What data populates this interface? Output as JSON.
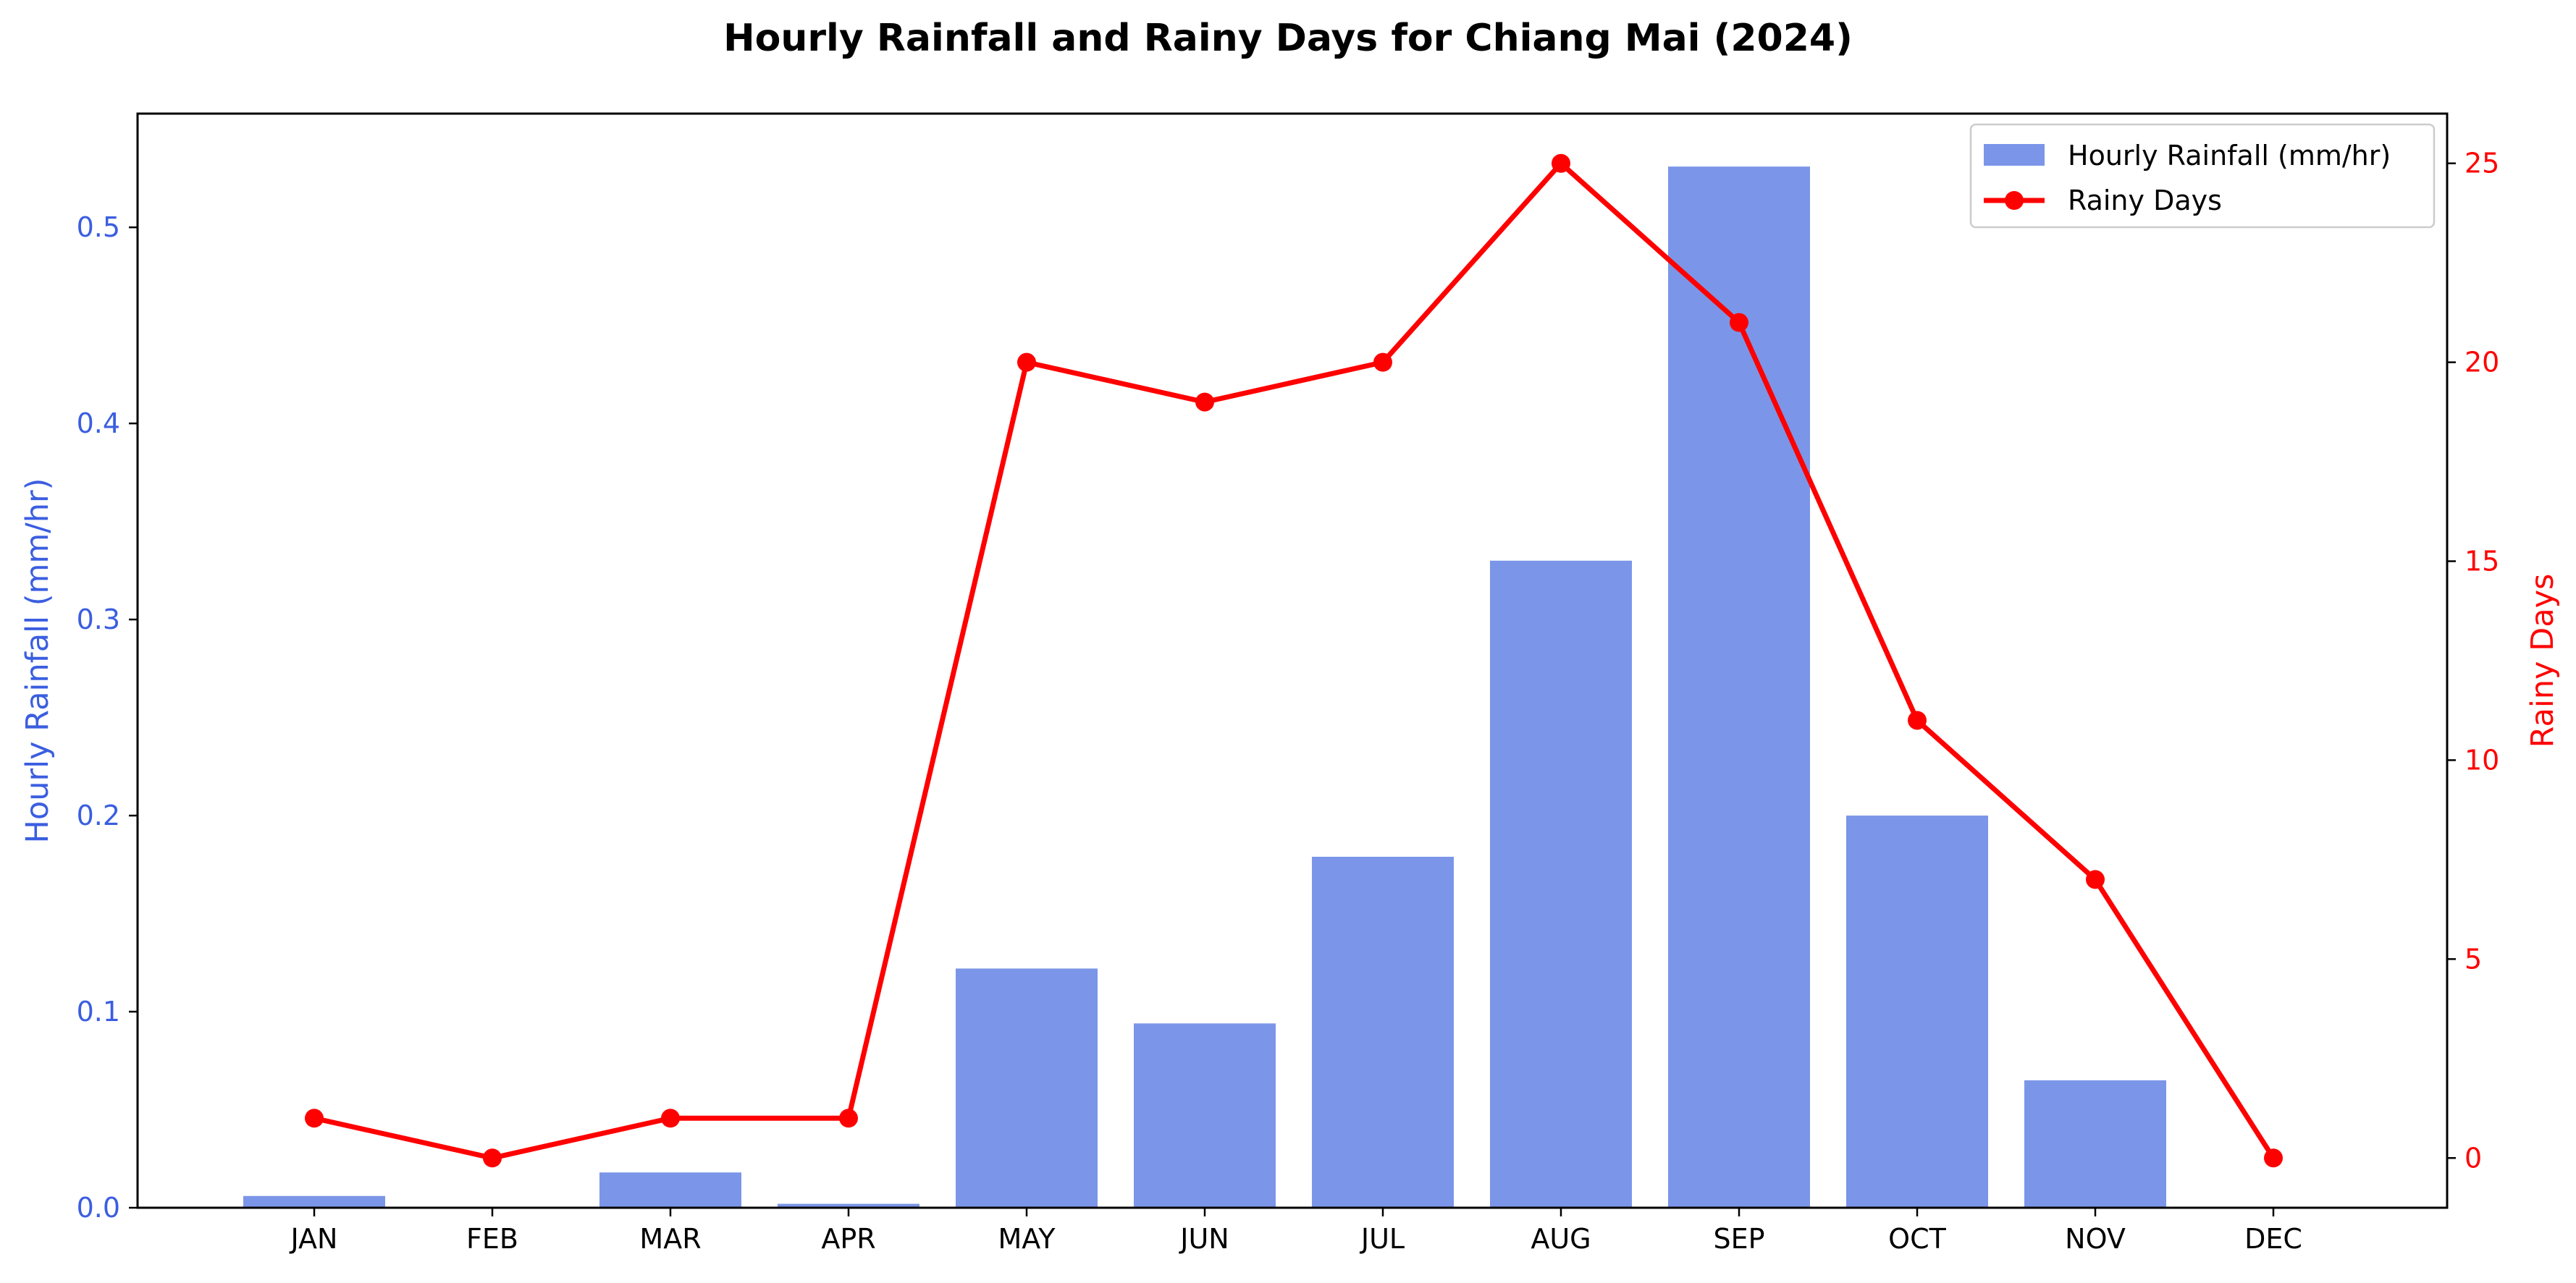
{
  "chart_data": {
    "type": "bar",
    "title": "Hourly Rainfall and Rainy Days for Chiang Mai (2024)",
    "categories": [
      "JAN",
      "FEB",
      "MAR",
      "APR",
      "MAY",
      "JUN",
      "JUL",
      "AUG",
      "SEP",
      "OCT",
      "NOV",
      "DEC"
    ],
    "series": [
      {
        "name": "Hourly Rainfall (mm/hr)",
        "type": "bar",
        "axis": "left",
        "color": "#7b96e8",
        "values": [
          0.006,
          0.0,
          0.018,
          0.002,
          0.122,
          0.094,
          0.179,
          0.33,
          0.531,
          0.2,
          0.065,
          0.0
        ]
      },
      {
        "name": "Rainy Days",
        "type": "line",
        "axis": "right",
        "color": "#ff0000",
        "values": [
          1,
          0,
          1,
          1,
          20,
          19,
          20,
          25,
          21,
          11,
          7,
          0
        ]
      }
    ],
    "ylabel": "Hourly Rainfall (mm/hr)",
    "ylabel_color": "#3b5ee0",
    "ylim": [
      0,
      0.558
    ],
    "yticks": [
      0.0,
      0.1,
      0.2,
      0.3,
      0.4,
      0.5
    ],
    "ytick_labels": [
      "0.0",
      "0.1",
      "0.2",
      "0.3",
      "0.4",
      "0.5"
    ],
    "y2label": "Rainy Days",
    "y2label_color": "#ff0000",
    "y2lim": [
      -1.25,
      26.25
    ],
    "y2ticks": [
      0,
      5,
      10,
      15,
      20,
      25
    ],
    "y2tick_labels": [
      "0",
      "5",
      "10",
      "15",
      "20",
      "25"
    ],
    "legend": {
      "placement": "top-right",
      "entries": [
        "Hourly Rainfall (mm/hr)",
        "Rainy Days"
      ]
    },
    "grid": false
  }
}
